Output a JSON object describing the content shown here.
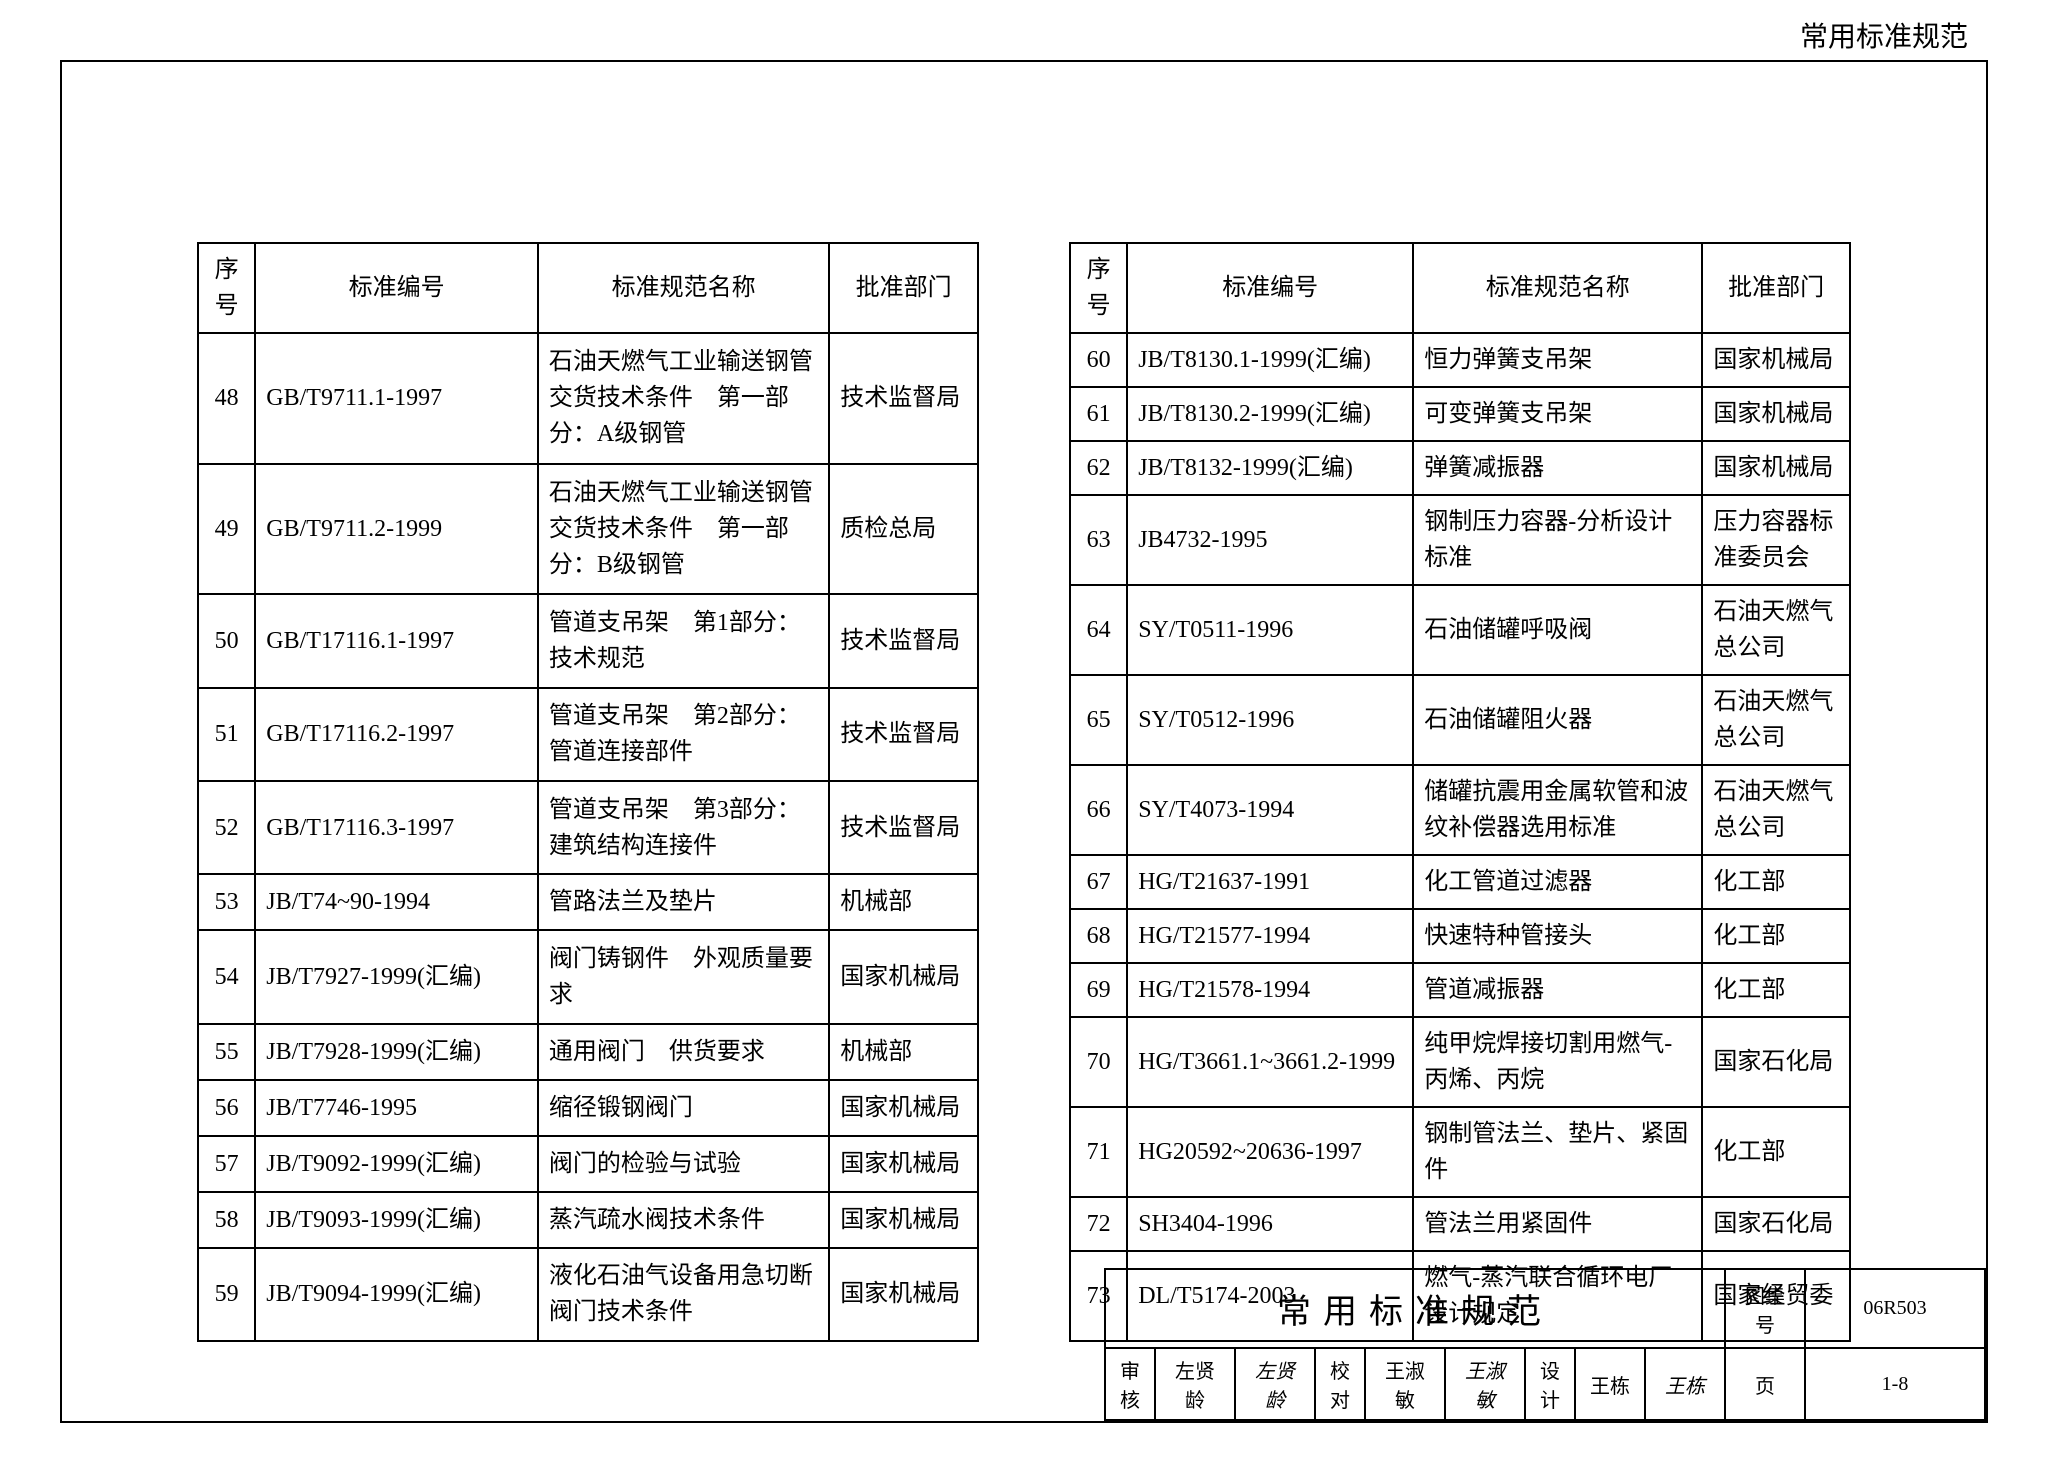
{
  "page_header": "常用标准规范",
  "tables": {
    "columns": [
      "序号",
      "标准编号",
      "标准规范名称",
      "批准部门"
    ],
    "left_rows": [
      [
        "48",
        "GB/T9711.1-1997",
        "石油天燃气工业输送钢管交货技术条件　第一部分：A级钢管",
        "技术监督局"
      ],
      [
        "49",
        "GB/T9711.2-1999",
        "石油天燃气工业输送钢管交货技术条件　第一部分：B级钢管",
        "质检总局"
      ],
      [
        "50",
        "GB/T17116.1-1997",
        "管道支吊架　第1部分：技术规范",
        "技术监督局"
      ],
      [
        "51",
        "GB/T17116.2-1997",
        "管道支吊架　第2部分：管道连接部件",
        "技术监督局"
      ],
      [
        "52",
        "GB/T17116.3-1997",
        "管道支吊架　第3部分：建筑结构连接件",
        "技术监督局"
      ],
      [
        "53",
        "JB/T74~90-1994",
        "管路法兰及垫片",
        "机械部"
      ],
      [
        "54",
        "JB/T7927-1999(汇编)",
        "阀门铸钢件　外观质量要求",
        "国家机械局"
      ],
      [
        "55",
        "JB/T7928-1999(汇编)",
        "通用阀门　供货要求",
        "机械部"
      ],
      [
        "56",
        "JB/T7746-1995",
        "缩径锻钢阀门",
        "国家机械局"
      ],
      [
        "57",
        "JB/T9092-1999(汇编)",
        "阀门的检验与试验",
        "国家机械局"
      ],
      [
        "58",
        "JB/T9093-1999(汇编)",
        "蒸汽疏水阀技术条件",
        "国家机械局"
      ],
      [
        "59",
        "JB/T9094-1999(汇编)",
        "液化石油气设备用急切断阀门技术条件",
        "国家机械局"
      ]
    ],
    "right_rows": [
      [
        "60",
        "JB/T8130.1-1999(汇编)",
        "恒力弹簧支吊架",
        "国家机械局"
      ],
      [
        "61",
        "JB/T8130.2-1999(汇编)",
        "可变弹簧支吊架",
        "国家机械局"
      ],
      [
        "62",
        "JB/T8132-1999(汇编)",
        "弹簧减振器",
        "国家机械局"
      ],
      [
        "63",
        "JB4732-1995",
        "钢制压力容器-分析设计标准",
        "压力容器标准委员会"
      ],
      [
        "64",
        "SY/T0511-1996",
        "石油储罐呼吸阀",
        "石油天燃气总公司"
      ],
      [
        "65",
        "SY/T0512-1996",
        "石油储罐阻火器",
        "石油天燃气总公司"
      ],
      [
        "66",
        "SY/T4073-1994",
        "储罐抗震用金属软管和波纹补偿器选用标准",
        "石油天燃气总公司"
      ],
      [
        "67",
        "HG/T21637-1991",
        "化工管道过滤器",
        "化工部"
      ],
      [
        "68",
        "HG/T21577-1994",
        "快速特种管接头",
        "化工部"
      ],
      [
        "69",
        "HG/T21578-1994",
        "管道减振器",
        "化工部"
      ],
      [
        "70",
        "HG/T3661.1~3661.2-1999",
        "纯甲烷焊接切割用燃气-丙烯、丙烷",
        "国家石化局"
      ],
      [
        "71",
        "HG20592~20636-1997",
        "钢制管法兰、垫片、紧固件",
        "化工部"
      ],
      [
        "72",
        "SH3404-1996",
        "管法兰用紧固件",
        "国家石化局"
      ],
      [
        "73",
        "DL/T5174-2003",
        "燃气-蒸汽联合循环电厂设计规定",
        "国家经贸委"
      ]
    ]
  },
  "title_block": {
    "main_title": "常用标准规范",
    "drawing_no_label": "图集号",
    "drawing_no": "06R503",
    "review_label": "审核",
    "review_name": "左贤龄",
    "review_sig": "左贤龄",
    "check_label": "校对",
    "check_name": "王淑敏",
    "check_sig": "王淑敏",
    "design_label": "设计",
    "design_name": "王栋",
    "design_sig": "王栋",
    "page_label": "页",
    "page_no": "1-8"
  },
  "style": {
    "border_color": "#000000",
    "background": "#ffffff",
    "font_family": "SimSun",
    "header_fontsize": 28,
    "table_fontsize": 24,
    "title_fontsize": 34,
    "col_widths": {
      "seq": 58,
      "code": 290,
      "name": 305,
      "dept": 155
    }
  }
}
